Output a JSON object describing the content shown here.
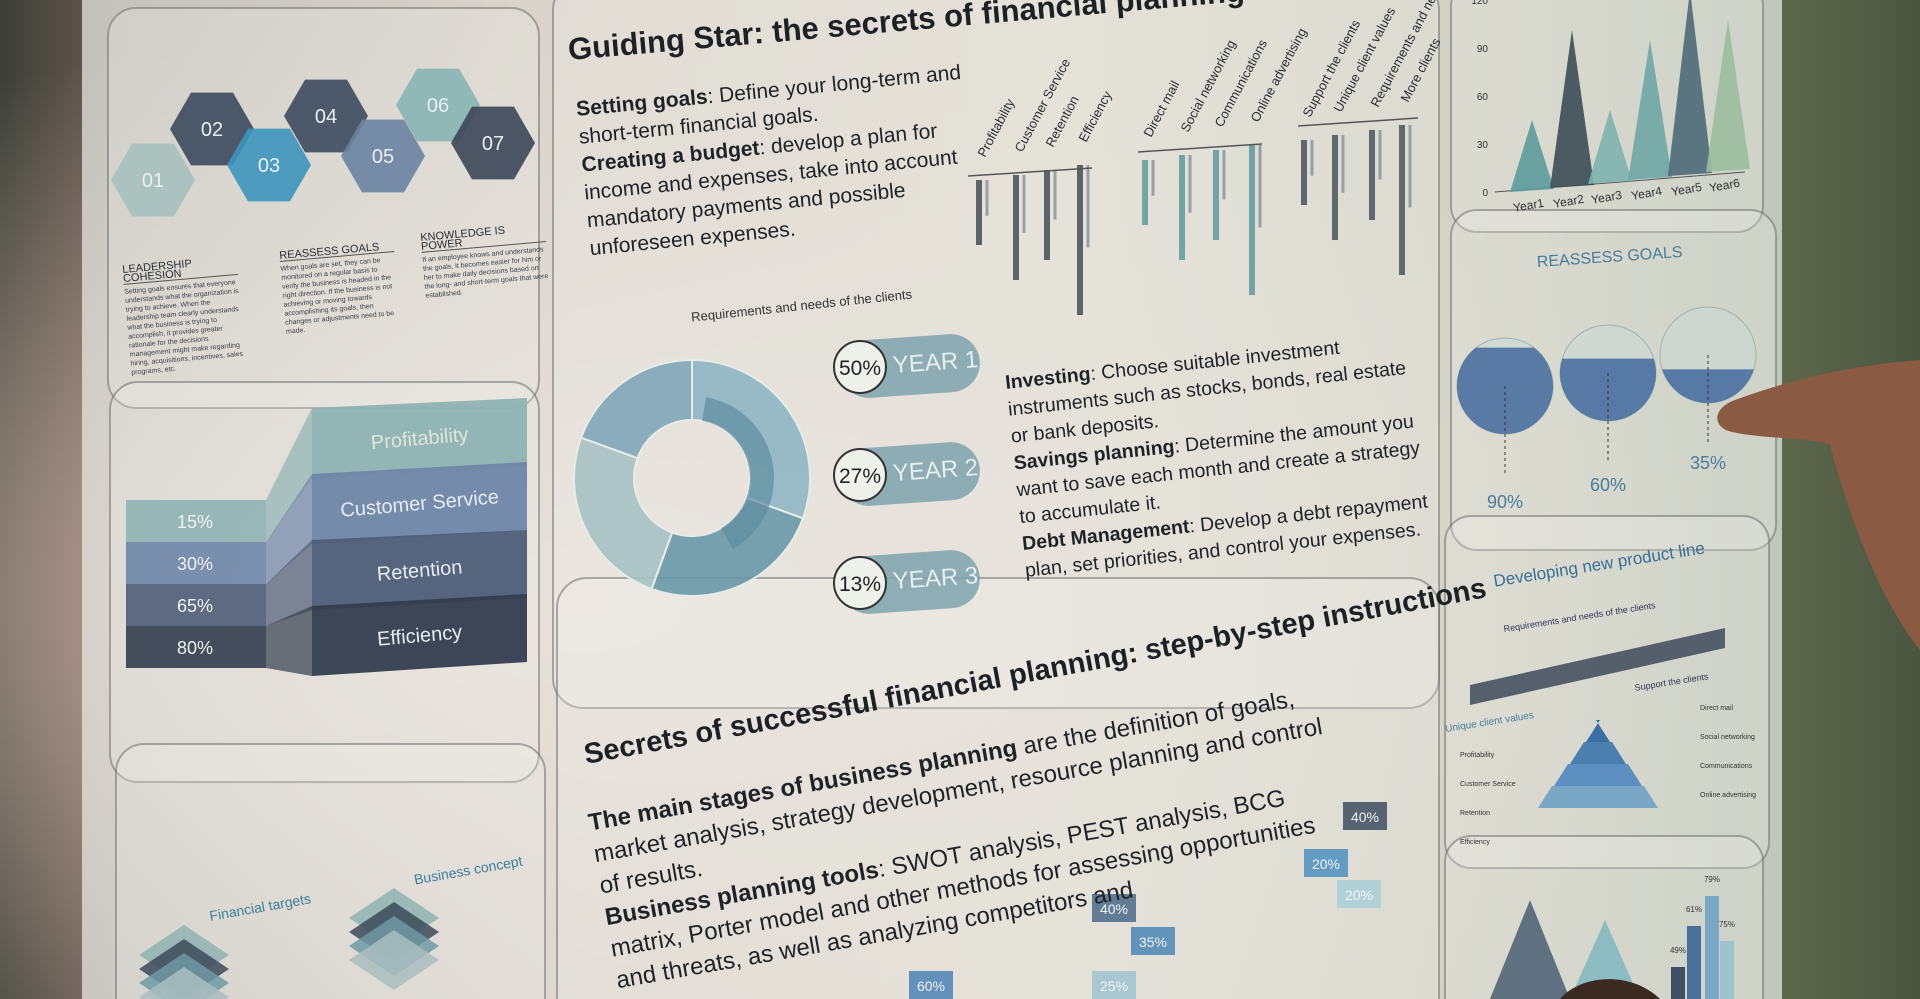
{
  "hexagons": [
    "01",
    "02",
    "03",
    "04",
    "05",
    "06",
    "07"
  ],
  "principles": [
    {
      "title": "LEADERSHIP COHESION",
      "text": "Setting goals ensures that everyone understands what the organization is trying to achieve. When the leadership team clearly understands what the business is trying to accomplish, it provides greater rationale for the decisions management might make regarding hiring, acquisitions, incentives, sales programs, etc."
    },
    {
      "title": "REASSESS GOALS",
      "text": "When goals are set, they can be monitored on a regular basis to verify the business is headed in the right direction. If the business is not achieving or moving towards accomplishing its goals, then changes or adjustments need to be made."
    },
    {
      "title": "KNOWLEDGE IS POWER",
      "text": "If an employee knows and understands the goals, it becomes easier for him or her to make daily decisions based on the long- and short-term goals that were established."
    }
  ],
  "funnel": {
    "stages": [
      "Profitability",
      "Customer Service",
      "Retention",
      "Efficiency"
    ],
    "percents": [
      "15%",
      "30%",
      "65%",
      "80%"
    ]
  },
  "guide": {
    "title": "Guiding Star: the secrets of financial planning",
    "items": [
      {
        "term": "Setting goals",
        "text": ": Define your long-term and short-term financial goals."
      },
      {
        "term": "Creating a budget",
        "text": ": develop a plan for income and expenses, take into account mandatory payments and possible unforeseen expenses."
      }
    ],
    "bar_labels": [
      "Profitability",
      "Customer Service",
      "Retention",
      "Efficiency",
      "Direct mail",
      "Social networking",
      "Communications",
      "Online advertising",
      "Support the clients",
      "Unique client values",
      "Requirements and needs of the clients",
      "More clients"
    ],
    "donut_caption": "Requirements and needs of the clients",
    "years": [
      {
        "percent": "50%",
        "label": "YEAR 1"
      },
      {
        "percent": "27%",
        "label": "YEAR 2"
      },
      {
        "percent": "13%",
        "label": "YEAR 3"
      }
    ],
    "more_items": [
      {
        "term": "Investing",
        "text": ": Choose suitable investment instruments such as stocks, bonds, real estate or bank deposits."
      },
      {
        "term": "Savings planning",
        "text": ": Determine the amount you want to save each month and create a strategy to accumulate it."
      },
      {
        "term": "Debt Management",
        "text": ": Develop a debt repayment plan, set priorities, and control your expenses."
      }
    ]
  },
  "year_chart": {
    "yticks": [
      "0",
      "30",
      "60",
      "90",
      "120"
    ],
    "xlabels": [
      "Year1",
      "Year2",
      "Year3",
      "Year4",
      "Year5",
      "Year6"
    ]
  },
  "reassess": {
    "title": "REASSESS GOALS",
    "values": [
      "90%",
      "60%",
      "35%"
    ]
  },
  "product_line": {
    "title": "Developing new product line",
    "timeline_labels": [
      "Requirements and needs of the clients",
      "Unique client values",
      "Support the clients"
    ],
    "left_labels": [
      "Profitability",
      "Customer Service",
      "Retention",
      "Efficiency"
    ],
    "right_labels": [
      "Direct mail",
      "Social networking",
      "Communications",
      "Online advertising"
    ]
  },
  "steps": {
    "title": "Secrets of successful financial planning: step-by-step instructions",
    "items": [
      {
        "term": "The main stages of business planning",
        "text": " are the definition of goals, market analysis, strategy development, resource planning and control of results."
      },
      {
        "term": "Business planning tools",
        "text": ": SWOT analysis, PEST analysis, BCG matrix, Porter model and other methods for assessing opportunities and threats, as well as analyzing competitors and"
      }
    ],
    "bar_labels": [
      "40%",
      "20%",
      "20%",
      "40%",
      "35%",
      "60%",
      "25%"
    ]
  },
  "targets": [
    "Financial targets",
    "Business concept"
  ],
  "corner_labels": [
    "49%",
    "61%",
    "79%",
    "75%"
  ]
}
